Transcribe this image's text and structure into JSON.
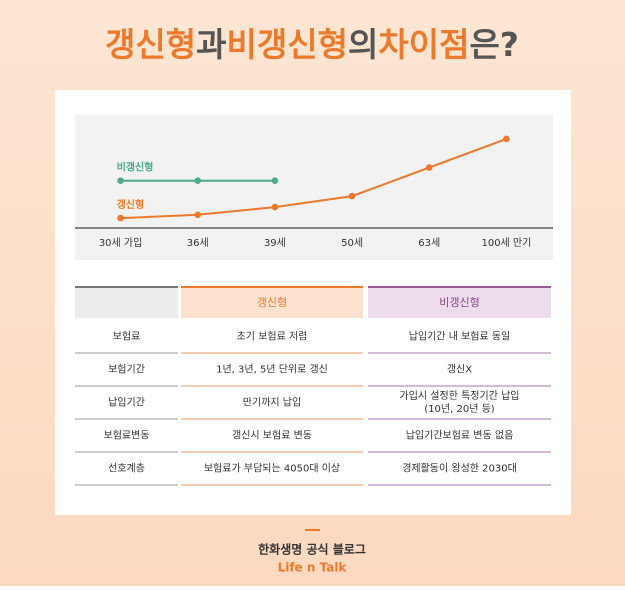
{
  "title_parts": [
    {
      "text": "갱신형",
      "color": "#ec7a2c"
    },
    {
      "text": "과",
      "color": "#555555"
    },
    {
      "text": "비갱신형",
      "color": "#ec7a2c"
    },
    {
      "text": "의",
      "color": "#555555"
    },
    {
      "text": "차이점",
      "color": "#ec7a2c"
    },
    {
      "text": "은?",
      "color": "#555555"
    }
  ],
  "chart_data": {
    "type": "line",
    "categories": [
      "30세 가입",
      "36세",
      "39세",
      "50세",
      "63세",
      "100세 만기"
    ],
    "series": [
      {
        "name": "비갱신형",
        "color": "#4daa8e",
        "values": [
          43,
          43,
          43,
          null,
          null,
          null
        ]
      },
      {
        "name": "갱신형",
        "color": "#ec7a2c",
        "values": [
          9,
          12,
          19,
          29,
          55,
          81
        ]
      }
    ],
    "ylim": [
      0,
      100
    ]
  },
  "table": {
    "columns": [
      "갱신형",
      "비갱신형"
    ],
    "rows": [
      [
        "보험료",
        "초기 보험료 저렴",
        "납입기간 내 보험료 동일"
      ],
      [
        "보험기간",
        "1년, 3년, 5년 단위로 갱신",
        "갱신X"
      ],
      [
        "납입기간",
        "만기까지 납입",
        [
          "가입시 설정한 특정기간 납입",
          "(10년, 20년 등)"
        ]
      ],
      [
        "보험료변동",
        "갱신시 보험료 변동",
        "납입기간보험료 변동 없음"
      ],
      [
        "선호계층",
        "보험료가 부담되는 4050대 이상",
        "경제활동이 왕성한 2030대"
      ]
    ]
  },
  "footer": {
    "company": "한화생명 공식 블로그",
    "brand": "Life n Talk"
  }
}
